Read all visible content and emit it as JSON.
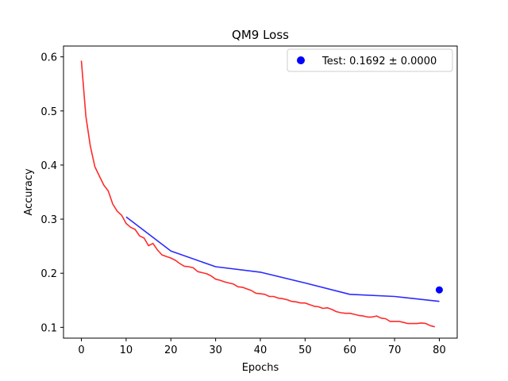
{
  "chart_data": {
    "type": "line",
    "title": "QM9 Loss",
    "xlabel": "Epochs",
    "ylabel": "Accuracy",
    "xlim": [
      -4,
      84
    ],
    "ylim": [
      0.08,
      0.62
    ],
    "xticks": [
      0,
      10,
      20,
      30,
      40,
      50,
      60,
      70,
      80
    ],
    "yticks": [
      0.1,
      0.2,
      0.3,
      0.4,
      0.5,
      0.6
    ],
    "grid": false,
    "legend_position": "top-right",
    "series": [
      {
        "kind": "line",
        "color": "#ff2a2a",
        "x": [
          0,
          1,
          2,
          3,
          4,
          5,
          6,
          7,
          8,
          9,
          10,
          11,
          12,
          13,
          14,
          15,
          16,
          17,
          18,
          19,
          20,
          21,
          22,
          23,
          24,
          25,
          26,
          27,
          28,
          29,
          30,
          31,
          32,
          33,
          34,
          35,
          36,
          37,
          38,
          39,
          40,
          41,
          42,
          43,
          44,
          45,
          46,
          47,
          48,
          49,
          50,
          51,
          52,
          53,
          54,
          55,
          56,
          57,
          58,
          59,
          60,
          61,
          62,
          63,
          64,
          65,
          66,
          67,
          68,
          69,
          70,
          71,
          72,
          73,
          74,
          75,
          76,
          77,
          78,
          79
        ],
        "values": [
          0.593,
          0.49,
          0.435,
          0.397,
          0.38,
          0.363,
          0.352,
          0.328,
          0.315,
          0.307,
          0.292,
          0.285,
          0.281,
          0.269,
          0.265,
          0.251,
          0.255,
          0.243,
          0.234,
          0.231,
          0.228,
          0.224,
          0.218,
          0.213,
          0.212,
          0.21,
          0.203,
          0.201,
          0.199,
          0.195,
          0.189,
          0.187,
          0.184,
          0.182,
          0.18,
          0.175,
          0.174,
          0.171,
          0.168,
          0.163,
          0.162,
          0.161,
          0.157,
          0.157,
          0.154,
          0.153,
          0.151,
          0.148,
          0.147,
          0.145,
          0.145,
          0.142,
          0.139,
          0.138,
          0.135,
          0.136,
          0.133,
          0.129,
          0.127,
          0.126,
          0.126,
          0.124,
          0.122,
          0.121,
          0.119,
          0.119,
          0.121,
          0.117,
          0.116,
          0.111,
          0.111,
          0.111,
          0.109,
          0.107,
          0.107,
          0.107,
          0.108,
          0.107,
          0.103,
          0.101
        ]
      },
      {
        "kind": "line",
        "color": "#2a2aff",
        "x": [
          10,
          20,
          30,
          40,
          50,
          60,
          70,
          80
        ],
        "values": [
          0.304,
          0.241,
          0.212,
          0.202,
          0.182,
          0.161,
          0.157,
          0.148
        ]
      },
      {
        "kind": "point",
        "name": "Test: 0.1692 ± 0.0000",
        "color": "#0000ff",
        "x": [
          80
        ],
        "values": [
          0.1692
        ]
      }
    ]
  }
}
